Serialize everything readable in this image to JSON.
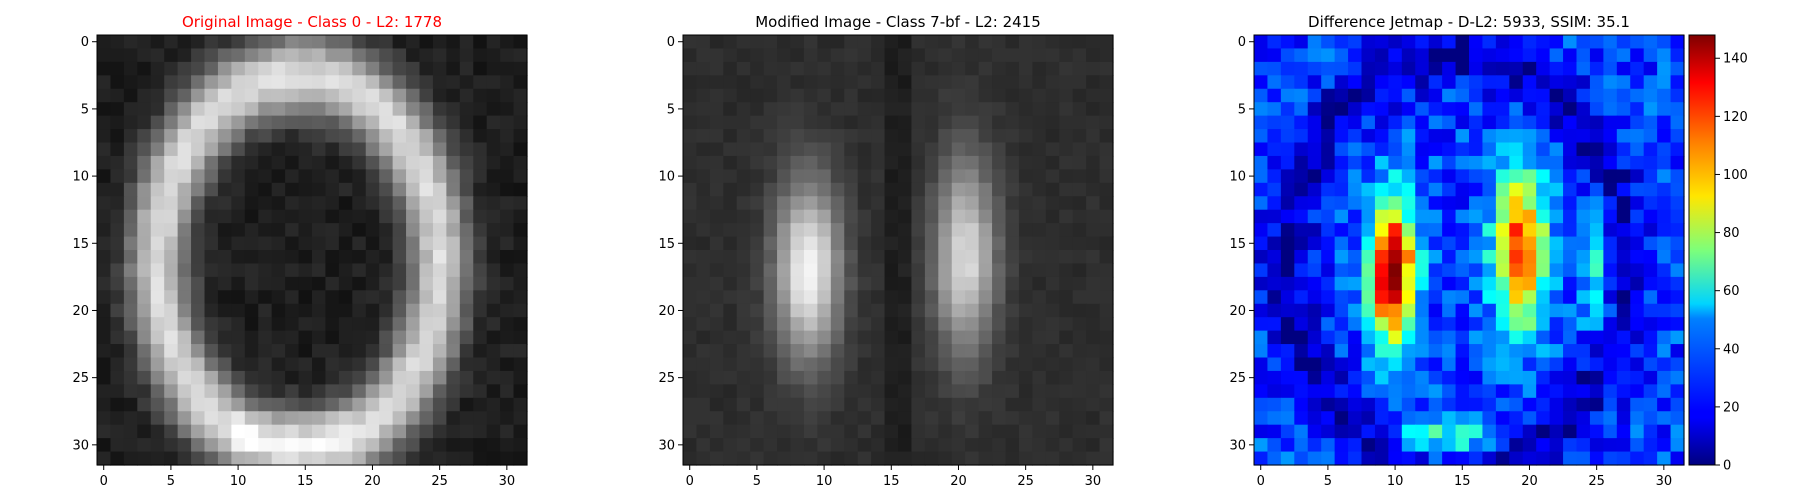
{
  "figure": {
    "background": "#ffffff"
  },
  "chart_data": [
    {
      "type": "heatmap",
      "title": "Original Image - Class 0 - L2: 1778",
      "title_color": "#ff0000",
      "colormap": "gray",
      "grid_size": 32,
      "xlim": [
        -0.5,
        31.5
      ],
      "ylim": [
        31.5,
        -0.5
      ],
      "x_ticks": [
        0,
        5,
        10,
        15,
        20,
        25,
        30
      ],
      "y_ticks": [
        0,
        5,
        10,
        15,
        20,
        25,
        30
      ],
      "pattern": "ring",
      "value_range": [
        0,
        255
      ],
      "colorbar": false
    },
    {
      "type": "heatmap",
      "title": "Modified Image - Class 7-bf - L2: 2415",
      "title_color": "#000000",
      "colormap": "gray",
      "grid_size": 32,
      "xlim": [
        -0.5,
        31.5
      ],
      "ylim": [
        31.5,
        -0.5
      ],
      "x_ticks": [
        0,
        5,
        10,
        15,
        20,
        25,
        30
      ],
      "y_ticks": [
        0,
        5,
        10,
        15,
        20,
        25,
        30
      ],
      "pattern": "double-bar",
      "value_range": [
        0,
        255
      ],
      "colorbar": false
    },
    {
      "type": "heatmap",
      "title": "Difference Jetmap - D-L2: 5933, SSIM: 35.1",
      "title_color": "#000000",
      "colormap": "jet",
      "grid_size": 32,
      "xlim": [
        -0.5,
        31.5
      ],
      "ylim": [
        31.5,
        -0.5
      ],
      "x_ticks": [
        0,
        5,
        10,
        15,
        20,
        25,
        30
      ],
      "y_ticks": [
        0,
        5,
        10,
        15,
        20,
        25,
        30
      ],
      "pattern": "difference",
      "value_range": [
        0,
        148
      ],
      "colorbar": true,
      "colorbar_ticks": [
        0,
        20,
        40,
        60,
        80,
        100,
        120,
        140
      ]
    }
  ]
}
